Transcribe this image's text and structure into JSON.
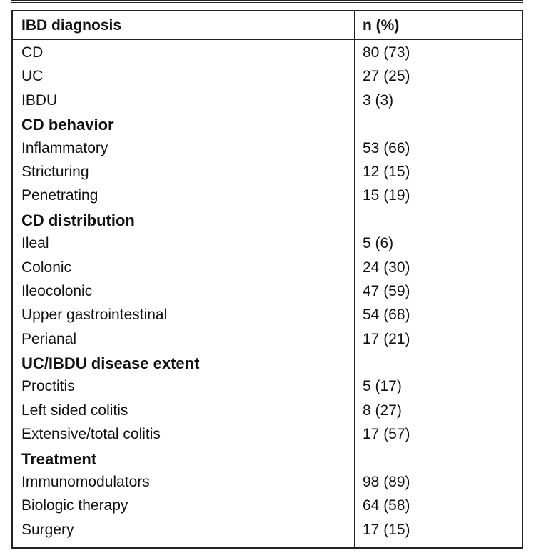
{
  "table": {
    "header": {
      "label": "IBD diagnosis",
      "value": "n (%)"
    },
    "rows": [
      {
        "label": "CD",
        "value": "80 (73)",
        "section": false
      },
      {
        "label": "UC",
        "value": "27 (25)",
        "section": false
      },
      {
        "label": "IBDU",
        "value": "3 (3)",
        "section": false
      },
      {
        "label": "CD behavior",
        "value": "",
        "section": true
      },
      {
        "label": "Inflammatory",
        "value": "53 (66)",
        "section": false
      },
      {
        "label": "Stricturing",
        "value": "12 (15)",
        "section": false
      },
      {
        "label": "Penetrating",
        "value": "15 (19)",
        "section": false
      },
      {
        "label": "CD distribution",
        "value": "",
        "section": true
      },
      {
        "label": "Ileal",
        "value": "5 (6)",
        "section": false
      },
      {
        "label": "Colonic",
        "value": "24 (30)",
        "section": false
      },
      {
        "label": "Ileocolonic",
        "value": "47 (59)",
        "section": false
      },
      {
        "label": "Upper gastrointestinal",
        "value": "54 (68)",
        "section": false
      },
      {
        "label": "Perianal",
        "value": "17 (21)",
        "section": false
      },
      {
        "label": "UC/IBDU disease extent",
        "value": "",
        "section": true
      },
      {
        "label": "Proctitis",
        "value": "5 (17)",
        "section": false
      },
      {
        "label": "Left sided colitis",
        "value": "8 (27)",
        "section": false
      },
      {
        "label": "Extensive/total colitis",
        "value": "17 (57)",
        "section": false
      },
      {
        "label": "Treatment",
        "value": "",
        "section": true
      },
      {
        "label": "Immunomodulators",
        "value": "98 (89)",
        "section": false
      },
      {
        "label": "Biologic therapy",
        "value": "64 (58)",
        "section": false
      },
      {
        "label": "Surgery",
        "value": "17 (15)",
        "section": false
      }
    ]
  }
}
